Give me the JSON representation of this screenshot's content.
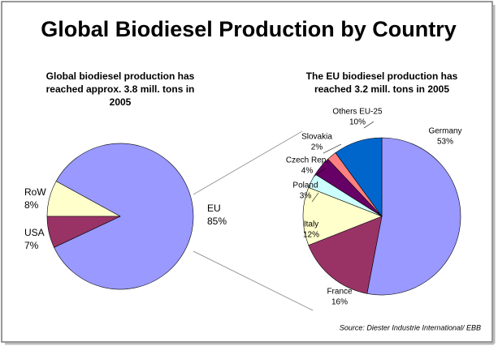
{
  "title": "Global Biodiesel Production by Country",
  "source": "Source: Diester Industrie International/ EBB",
  "chart_data": [
    {
      "type": "pie",
      "title": "Global biodiesel production has reached approx. 3.8 mill. tons in 2005",
      "categories": [
        "EU",
        "RoW",
        "USA"
      ],
      "values": [
        85,
        8,
        7
      ],
      "value_labels": [
        "85%",
        "8%",
        "7%"
      ],
      "colors": [
        "#9999ff",
        "#ffffcc",
        "#993366"
      ]
    },
    {
      "type": "pie",
      "title": "The EU biodiesel production has reached 3.2 mill. tons in 2005",
      "categories": [
        "Germany",
        "France",
        "Italy",
        "Poland",
        "Czech Rep.",
        "Slovakia",
        "Others EU-25"
      ],
      "values": [
        53,
        16,
        12,
        3,
        4,
        2,
        10
      ],
      "value_labels": [
        "53%",
        "16%",
        "12%",
        "3%",
        "4%",
        "2%",
        "10%"
      ],
      "colors": [
        "#9999ff",
        "#993366",
        "#ffffcc",
        "#ccffff",
        "#660066",
        "#ff8080",
        "#0066cc"
      ]
    }
  ]
}
